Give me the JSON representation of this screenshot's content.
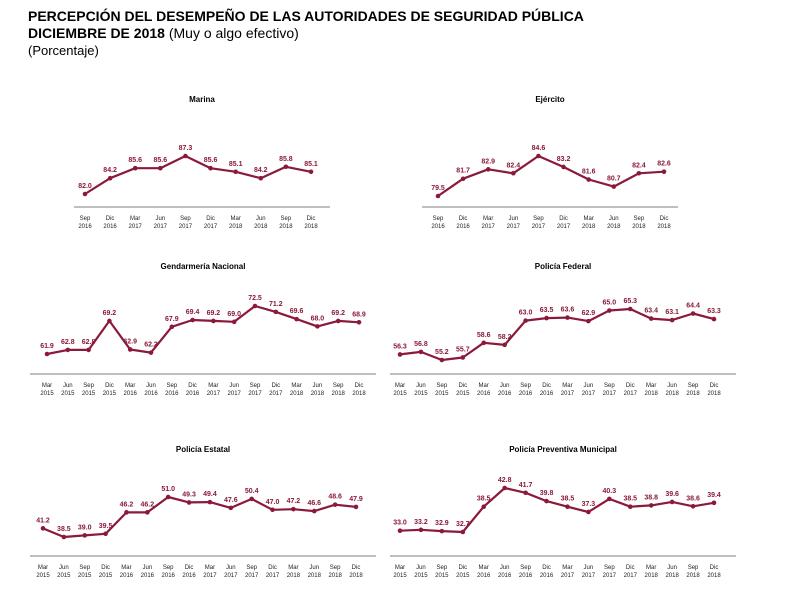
{
  "header": {
    "title": "PERCEPCIÓN DEL DESEMPEÑO DE LAS AUTORIDADES DE SEGURIDAD PÚBLICA",
    "subtitle_bold": "DICIEMBRE DE 2018",
    "subtitle_rest": " (Muy o algo efectivo)",
    "unit": "(Porcentaje)"
  },
  "colors": {
    "line": "#8b1a3a",
    "axis": "#555555"
  },
  "chart_data": [
    {
      "type": "line",
      "title": "Marina",
      "categories": [
        [
          "Sep",
          "2016"
        ],
        [
          "Dic",
          "2016"
        ],
        [
          "Mar",
          "2017"
        ],
        [
          "Jun",
          "2017"
        ],
        [
          "Sep",
          "2017"
        ],
        [
          "Dic",
          "2017"
        ],
        [
          "Mar",
          "2018"
        ],
        [
          "Jun",
          "2018"
        ],
        [
          "Sep",
          "2018"
        ],
        [
          "Dic",
          "2018"
        ]
      ],
      "values": [
        82.0,
        84.2,
        85.6,
        85.6,
        87.3,
        85.6,
        85.1,
        84.2,
        85.8,
        85.1
      ],
      "labels": [
        "82.0",
        "84.2",
        "85.6",
        "85.6",
        "87.3",
        "85.6",
        "85.1",
        "84.2",
        "85.8",
        "85.1"
      ]
    },
    {
      "type": "line",
      "title": "Ejército",
      "categories": [
        [
          "Sep",
          "2016"
        ],
        [
          "Dic",
          "2016"
        ],
        [
          "Mar",
          "2017"
        ],
        [
          "Jun",
          "2017"
        ],
        [
          "Sep",
          "2017"
        ],
        [
          "Dic",
          "2017"
        ],
        [
          "Mar",
          "2018"
        ],
        [
          "Jun",
          "2018"
        ],
        [
          "Sep",
          "2018"
        ],
        [
          "Dic",
          "2018"
        ]
      ],
      "values": [
        79.5,
        81.7,
        82.9,
        82.4,
        84.6,
        83.2,
        81.6,
        80.7,
        82.4,
        82.6
      ],
      "labels": [
        "79.5",
        "81.7",
        "82.9",
        "82.4",
        "84.6",
        "83.2",
        "81.6",
        "80.7",
        "82.4",
        "82.6"
      ]
    },
    {
      "type": "line",
      "title": "Gendarmería Nacional",
      "categories": [
        [
          "Mar",
          "2015"
        ],
        [
          "Jun",
          "2015"
        ],
        [
          "Sep",
          "2015"
        ],
        [
          "Dic",
          "2015"
        ],
        [
          "Mar",
          "2016"
        ],
        [
          "Jun",
          "2016"
        ],
        [
          "Sep",
          "2016"
        ],
        [
          "Dic",
          "2016"
        ],
        [
          "Mar",
          "2017"
        ],
        [
          "Jun",
          "2017"
        ],
        [
          "Sep",
          "2017"
        ],
        [
          "Dic",
          "2017"
        ],
        [
          "Mar",
          "2018"
        ],
        [
          "Jun",
          "2018"
        ],
        [
          "Sep",
          "2018"
        ],
        [
          "Dic",
          "2018"
        ]
      ],
      "values": [
        61.9,
        62.8,
        62.8,
        69.2,
        62.9,
        62.2,
        67.9,
        69.4,
        69.2,
        69.0,
        72.5,
        71.2,
        69.6,
        68.0,
        69.2,
        68.9
      ],
      "labels": [
        "61.9",
        "62.8",
        "62.8",
        "69.2",
        "62.9",
        "62.2",
        "67.9",
        "69.4",
        "69.2",
        "69.0",
        "72.5",
        "71.2",
        "69.6",
        "68.0",
        "69.2",
        "68.9"
      ]
    },
    {
      "type": "line",
      "title": "Policía Federal",
      "categories": [
        [
          "Mar",
          "2015"
        ],
        [
          "Jun",
          "2015"
        ],
        [
          "Sep",
          "2015"
        ],
        [
          "Dic",
          "2015"
        ],
        [
          "Mar",
          "2016"
        ],
        [
          "Jun",
          "2016"
        ],
        [
          "Sep",
          "2016"
        ],
        [
          "Dic",
          "2016"
        ],
        [
          "Mar",
          "2017"
        ],
        [
          "Jun",
          "2017"
        ],
        [
          "Sep",
          "2017"
        ],
        [
          "Dic",
          "2017"
        ],
        [
          "Mar",
          "2018"
        ],
        [
          "Jun",
          "2018"
        ],
        [
          "Sep",
          "2018"
        ],
        [
          "Dic",
          "2018"
        ]
      ],
      "values": [
        56.3,
        56.8,
        55.2,
        55.7,
        58.6,
        58.2,
        63.0,
        63.5,
        63.6,
        62.9,
        65.0,
        65.3,
        63.4,
        63.1,
        64.4,
        63.3
      ],
      "labels": [
        "56.3",
        "56.8",
        "55.2",
        "55.7",
        "58.6",
        "58.2",
        "63.0",
        "63.5",
        "63.6",
        "62.9",
        "65.0",
        "65.3",
        "63.4",
        "63.1",
        "64.4",
        "63.3"
      ]
    },
    {
      "type": "line",
      "title": "Policía Estatal",
      "categories": [
        [
          "Mar",
          "2015"
        ],
        [
          "Jun",
          "2015"
        ],
        [
          "Sep",
          "2015"
        ],
        [
          "Dic",
          "2015"
        ],
        [
          "Mar",
          "2016"
        ],
        [
          "Jun",
          "2016"
        ],
        [
          "Sep",
          "2016"
        ],
        [
          "Dic",
          "2016"
        ],
        [
          "Mar",
          "2017"
        ],
        [
          "Jun",
          "2017"
        ],
        [
          "Sep",
          "2017"
        ],
        [
          "Dic",
          "2017"
        ],
        [
          "Mar",
          "2018"
        ],
        [
          "Jun",
          "2018"
        ],
        [
          "Sep",
          "2018"
        ],
        [
          "Dic",
          "2018"
        ]
      ],
      "values": [
        41.2,
        38.5,
        39.0,
        39.5,
        46.2,
        46.2,
        51.0,
        49.3,
        49.4,
        47.6,
        50.4,
        47.0,
        47.2,
        46.6,
        48.6,
        47.9
      ],
      "labels": [
        "41.2",
        "38.5",
        "39.0",
        "39.5",
        "46.2",
        "46.2",
        "51.0",
        "49.3",
        "49.4",
        "47.6",
        "50.4",
        "47.0",
        "47.2",
        "46.6",
        "48.6",
        "47.9"
      ]
    },
    {
      "type": "line",
      "title": "Policía Preventiva Municipal",
      "categories": [
        [
          "Mar",
          "2015"
        ],
        [
          "Jun",
          "2015"
        ],
        [
          "Sep",
          "2015"
        ],
        [
          "Dic",
          "2015"
        ],
        [
          "Mar",
          "2016"
        ],
        [
          "Jun",
          "2016"
        ],
        [
          "Sep",
          "2016"
        ],
        [
          "Dic",
          "2016"
        ],
        [
          "Mar",
          "2017"
        ],
        [
          "Jun",
          "2017"
        ],
        [
          "Sep",
          "2017"
        ],
        [
          "Dic",
          "2017"
        ],
        [
          "Mar",
          "2018"
        ],
        [
          "Jun",
          "2018"
        ],
        [
          "Sep",
          "2018"
        ],
        [
          "Dic",
          "2018"
        ]
      ],
      "values": [
        33.0,
        33.2,
        32.9,
        32.7,
        38.5,
        42.8,
        41.7,
        39.8,
        38.5,
        37.3,
        40.3,
        38.5,
        38.8,
        39.6,
        38.6,
        39.4
      ],
      "labels": [
        "33.0",
        "33.2",
        "32.9",
        "32.7",
        "38.5",
        "42.8",
        "41.7",
        "39.8",
        "38.5",
        "37.3",
        "40.3",
        "38.5",
        "38.8",
        "39.6",
        "38.6",
        "39.4"
      ]
    }
  ]
}
